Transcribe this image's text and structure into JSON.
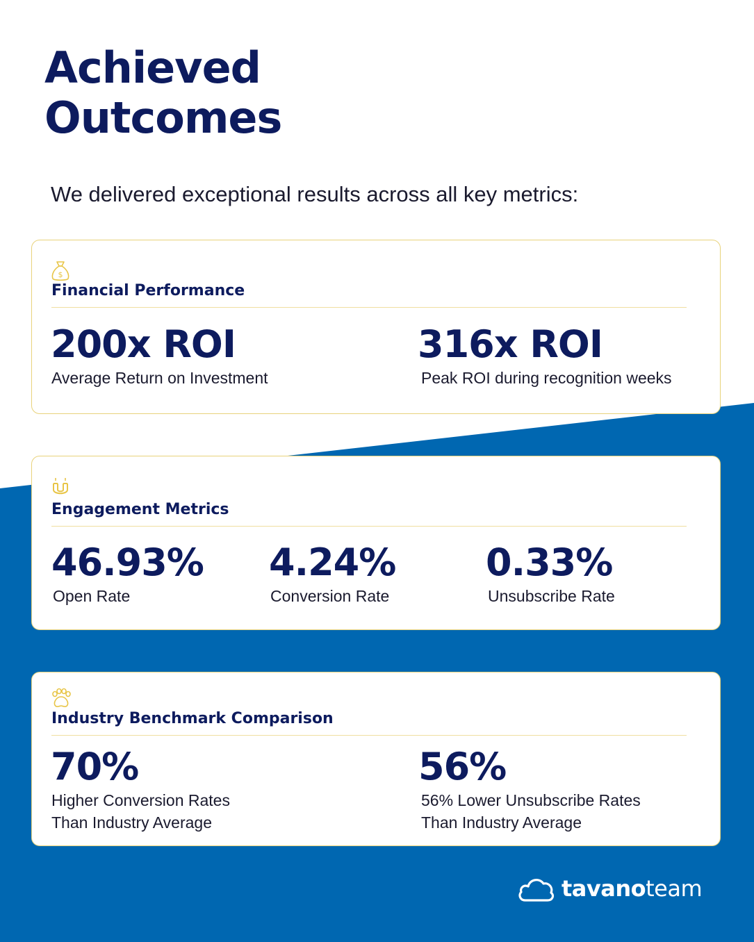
{
  "page": {
    "title": "Achieved\nOutcomes",
    "subtitle": "We delivered exceptional results across all key metrics:"
  },
  "colors": {
    "navy": "#0d1b5e",
    "blue": "#0067b1",
    "gold": "#e8c547",
    "white": "#ffffff"
  },
  "cards": {
    "financial": {
      "icon": "money-bag-icon",
      "heading": "Financial Performance",
      "metrics": [
        {
          "value": "200x ROI",
          "label": "Average Return on Investment"
        },
        {
          "value": "316x ROI",
          "label": "Peak ROI during recognition weeks"
        }
      ]
    },
    "engagement": {
      "icon": "magnet-icon",
      "heading": "Engagement Metrics",
      "metrics": [
        {
          "value": "46.93%",
          "label": "Open Rate"
        },
        {
          "value": "4.24%",
          "label": "Conversion Rate"
        },
        {
          "value": "0.33%",
          "label": "Unsubscribe Rate"
        }
      ]
    },
    "benchmark": {
      "icon": "paw-icon",
      "heading": "Industry Benchmark Comparison",
      "metrics": [
        {
          "value": "70%",
          "label_line1": "Higher Conversion Rates",
          "label_line2": "Than Industry Average"
        },
        {
          "value": "56%",
          "label_line1": "56% Lower Unsubscribe Rates",
          "label_line2": "Than Industry Average"
        }
      ]
    }
  },
  "logo": {
    "icon": "cloud-icon",
    "bold": "tavano",
    "light": "team"
  }
}
